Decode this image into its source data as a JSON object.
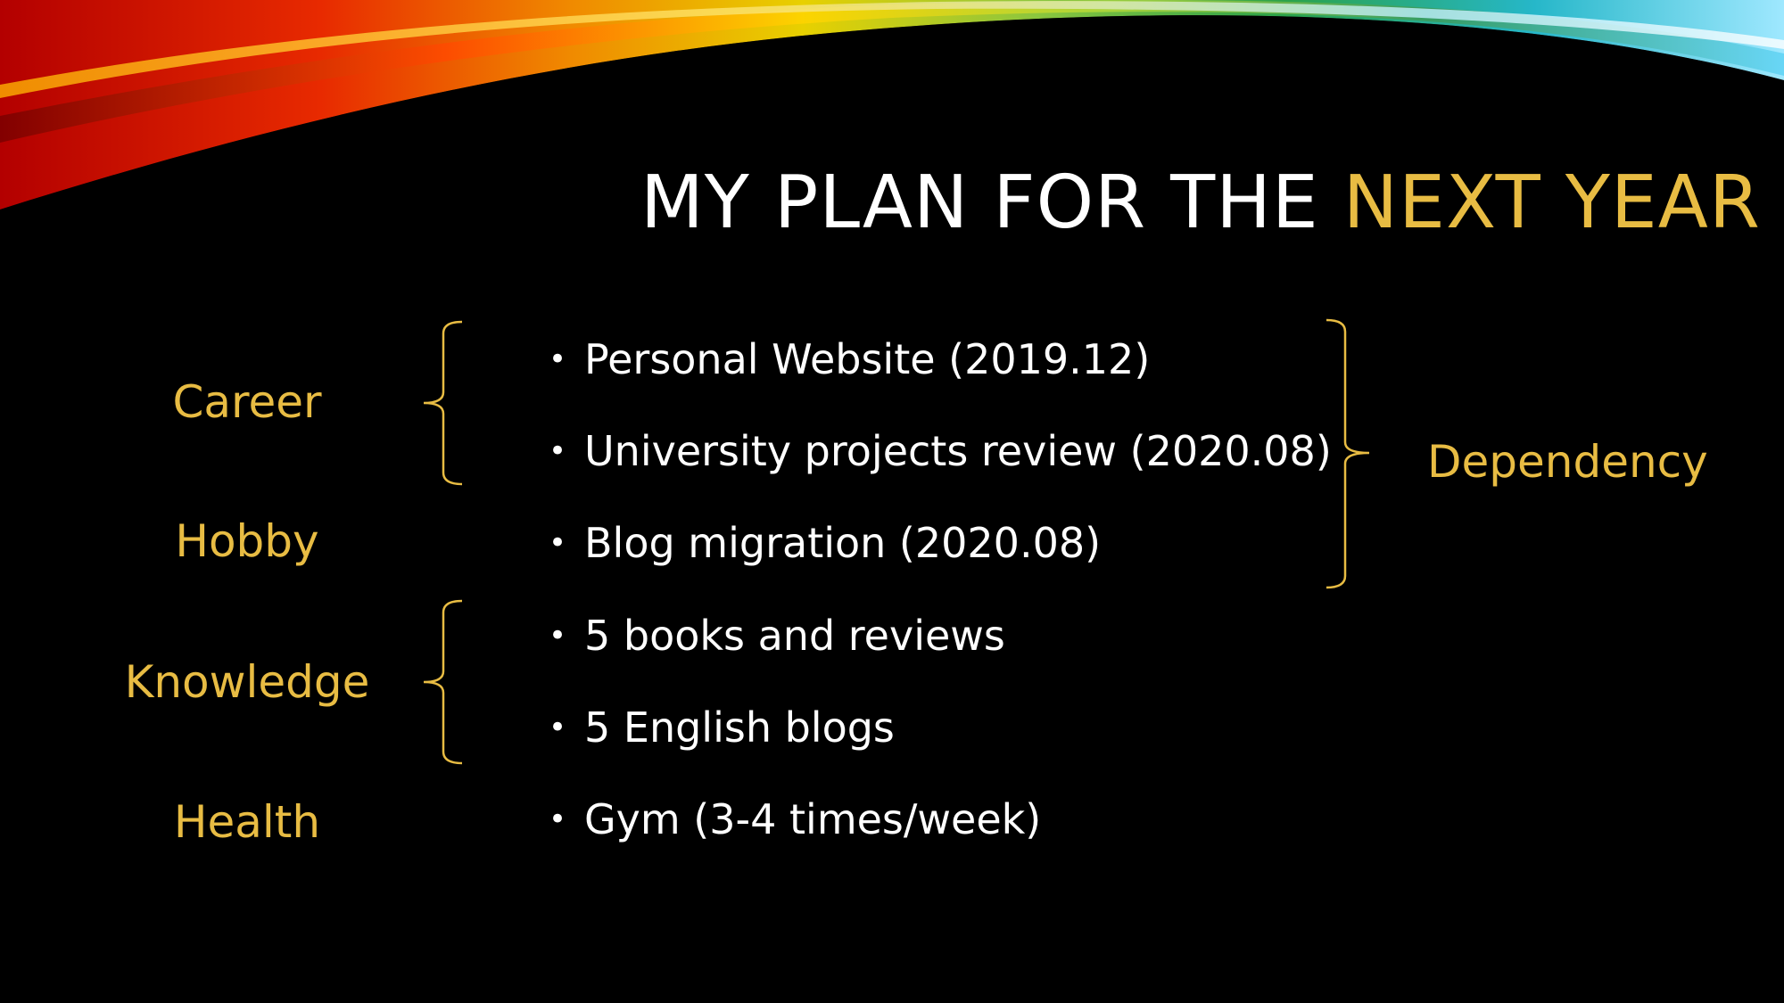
{
  "colors": {
    "accent": "#e8bc43",
    "background": "#000000",
    "text": "#ffffff"
  },
  "title": {
    "part1": "MY PLAN FOR THE ",
    "part2": "NEXT YEAR"
  },
  "categories": [
    "Career",
    "Hobby",
    "Knowledge",
    "Health"
  ],
  "items": [
    "Personal Website (2019.12)",
    "University projects review (2020.08)",
    "Blog migration (2020.08)",
    "5 books and reviews",
    "5 English blogs",
    "Gym (3-4 times/week)"
  ],
  "bullet": "•",
  "dependency_label": "Dependency"
}
